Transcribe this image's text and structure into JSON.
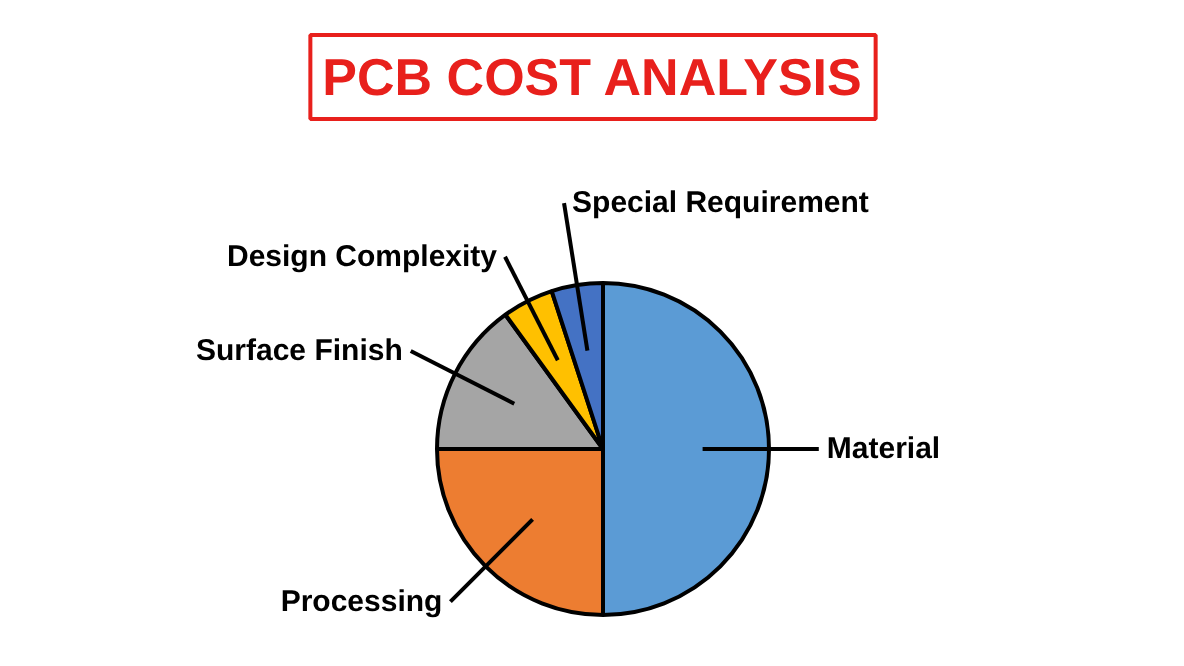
{
  "chart_data": {
    "type": "pie",
    "title": "PCB COST ANALYSIS",
    "categories": [
      "Material",
      "Processing",
      "Surface Finish",
      "Design Complexity",
      "Special Requirement"
    ],
    "values": [
      50,
      25,
      15,
      5,
      5
    ],
    "colors": [
      "#5b9bd5",
      "#ed7d31",
      "#a5a5a5",
      "#ffc000",
      "#4472c4"
    ]
  }
}
